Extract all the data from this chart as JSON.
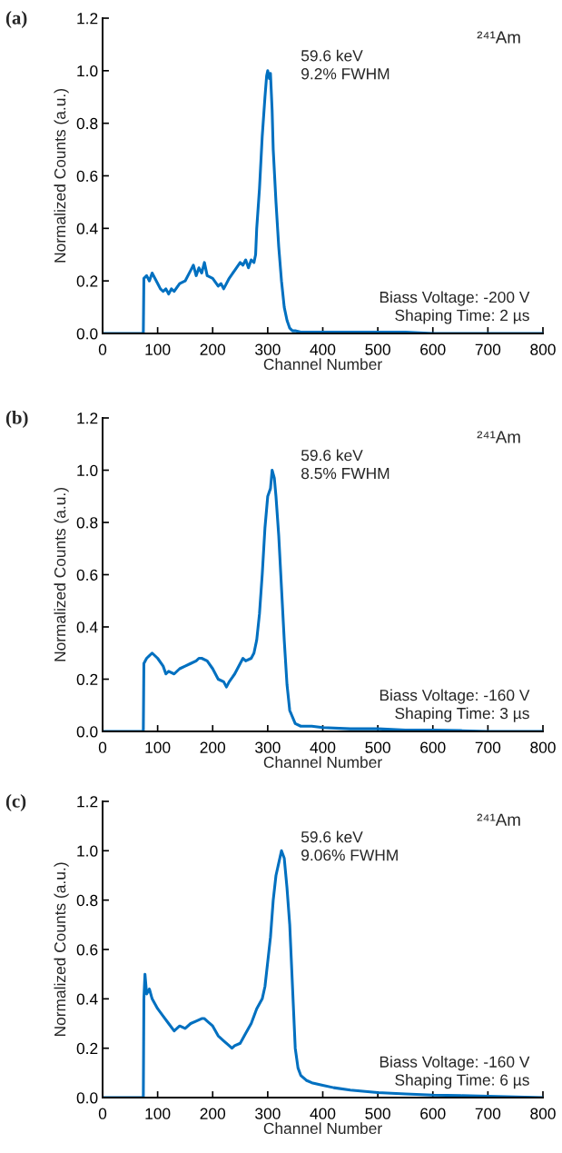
{
  "chart_data": [
    {
      "type": "line",
      "title": "(a)",
      "xlabel": "Channel Number",
      "ylabel": "Normalized Counts (a.u.)",
      "xlim": [
        0,
        800
      ],
      "ylim": [
        0,
        1.2
      ],
      "xticks": [
        0,
        100,
        200,
        300,
        400,
        500,
        600,
        700,
        800
      ],
      "yticks": [
        {
          "value": 0,
          "label": "0.0"
        },
        {
          "value": 0.2,
          "label": "0.2"
        },
        {
          "value": 0.4,
          "label": "0.4"
        },
        {
          "value": 0.6,
          "label": "0.6"
        },
        {
          "value": 0.8,
          "label": "0.8"
        },
        {
          "value": 1.0,
          "label": "1.0"
        },
        {
          "value": 1.2,
          "label": "1.2"
        }
      ],
      "grid": false,
      "marker": "none",
      "line_style": "solid",
      "annotations": [
        "²⁴¹Am",
        "59.6 keV\n9.2% FWHM",
        "Biass Voltage: -200 V\nShaping Time: 2 µs"
      ],
      "series": [
        {
          "color": "#0070c0",
          "x": [
            0,
            74,
            75,
            80,
            85,
            90,
            95,
            100,
            105,
            110,
            115,
            120,
            125,
            130,
            140,
            150,
            160,
            165,
            170,
            175,
            180,
            185,
            190,
            200,
            210,
            215,
            220,
            230,
            240,
            250,
            255,
            260,
            265,
            270,
            275,
            278,
            280,
            285,
            290,
            295,
            298,
            300,
            303,
            305,
            308,
            310,
            315,
            320,
            325,
            330,
            335,
            340,
            345,
            350,
            360,
            380,
            400,
            450,
            500,
            550,
            600,
            650,
            700,
            750,
            800
          ],
          "values": [
            0,
            0,
            0.21,
            0.22,
            0.2,
            0.23,
            0.21,
            0.19,
            0.17,
            0.16,
            0.17,
            0.15,
            0.17,
            0.16,
            0.19,
            0.2,
            0.24,
            0.26,
            0.22,
            0.25,
            0.23,
            0.27,
            0.22,
            0.21,
            0.18,
            0.19,
            0.17,
            0.21,
            0.24,
            0.27,
            0.26,
            0.28,
            0.25,
            0.28,
            0.27,
            0.3,
            0.4,
            0.55,
            0.75,
            0.9,
            0.98,
            1.0,
            0.97,
            0.99,
            0.85,
            0.7,
            0.5,
            0.33,
            0.2,
            0.1,
            0.05,
            0.02,
            0.01,
            0.01,
            0.005,
            0.005,
            0.005,
            0.005,
            0.005,
            0.005,
            0,
            0,
            0,
            0,
            0
          ]
        }
      ]
    },
    {
      "type": "line",
      "title": "(b)",
      "xlabel": "Channel Number",
      "ylabel": "Normalized Counts (a.u.)",
      "xlim": [
        0,
        800
      ],
      "ylim": [
        0,
        1.2
      ],
      "xticks": [
        0,
        100,
        200,
        300,
        400,
        500,
        600,
        700,
        800
      ],
      "yticks": [
        {
          "value": 0,
          "label": "0.0"
        },
        {
          "value": 0.2,
          "label": "0.2"
        },
        {
          "value": 0.4,
          "label": "0.4"
        },
        {
          "value": 0.6,
          "label": "0.6"
        },
        {
          "value": 0.8,
          "label": "0.8"
        },
        {
          "value": 1.0,
          "label": "1.0"
        },
        {
          "value": 1.2,
          "label": "1.2"
        }
      ],
      "grid": false,
      "marker": "none",
      "line_style": "solid",
      "annotations": [
        "²⁴¹Am",
        "59.6 keV\n8.5% FWHM",
        "Biass Voltage: -160 V\nShaping Time: 3 µs"
      ],
      "series": [
        {
          "color": "#0070c0",
          "x": [
            0,
            74,
            75,
            80,
            85,
            90,
            100,
            110,
            115,
            120,
            130,
            140,
            150,
            160,
            170,
            175,
            180,
            190,
            200,
            210,
            220,
            225,
            230,
            240,
            250,
            255,
            260,
            270,
            275,
            280,
            285,
            290,
            295,
            300,
            305,
            308,
            312,
            315,
            320,
            325,
            330,
            335,
            340,
            350,
            360,
            380,
            400,
            450,
            500,
            550,
            600,
            650,
            700,
            750,
            800
          ],
          "values": [
            0,
            0,
            0.26,
            0.28,
            0.29,
            0.3,
            0.28,
            0.25,
            0.22,
            0.23,
            0.22,
            0.24,
            0.25,
            0.26,
            0.27,
            0.28,
            0.28,
            0.27,
            0.24,
            0.2,
            0.19,
            0.17,
            0.19,
            0.22,
            0.26,
            0.28,
            0.27,
            0.28,
            0.3,
            0.35,
            0.45,
            0.6,
            0.78,
            0.9,
            0.93,
            1.0,
            0.97,
            0.9,
            0.75,
            0.55,
            0.35,
            0.18,
            0.08,
            0.03,
            0.02,
            0.02,
            0.015,
            0.01,
            0.01,
            0.005,
            0.005,
            0.003,
            0,
            0,
            0
          ]
        }
      ]
    },
    {
      "type": "line",
      "title": "(c)",
      "xlabel": "Channel Number",
      "ylabel": "Normalized Counts (a.u.)",
      "xlim": [
        0,
        800
      ],
      "ylim": [
        0,
        1.2
      ],
      "xticks": [
        0,
        100,
        200,
        300,
        400,
        500,
        600,
        700,
        800
      ],
      "yticks": [
        {
          "value": 0,
          "label": "0.0"
        },
        {
          "value": 0.2,
          "label": "0.2"
        },
        {
          "value": 0.4,
          "label": "0.4"
        },
        {
          "value": 0.6,
          "label": "0.6"
        },
        {
          "value": 0.8,
          "label": "0.8"
        },
        {
          "value": 1.0,
          "label": "1.0"
        },
        {
          "value": 1.2,
          "label": "1.2"
        }
      ],
      "grid": false,
      "marker": "none",
      "line_style": "solid",
      "annotations": [
        "²⁴¹Am",
        "59.6 keV\n9.06% FWHM",
        "Biass Voltage: -160 V\nShaping Time: 6 µs"
      ],
      "series": [
        {
          "color": "#0070c0",
          "x": [
            0,
            74,
            75,
            77,
            80,
            85,
            90,
            95,
            100,
            110,
            120,
            130,
            140,
            150,
            160,
            170,
            180,
            185,
            190,
            200,
            210,
            220,
            230,
            235,
            240,
            250,
            260,
            270,
            280,
            290,
            295,
            300,
            305,
            310,
            315,
            320,
            325,
            330,
            335,
            340,
            345,
            350,
            355,
            360,
            370,
            380,
            400,
            420,
            450,
            500,
            550,
            600,
            650,
            700,
            750,
            800
          ],
          "values": [
            0,
            0,
            0.4,
            0.5,
            0.42,
            0.44,
            0.4,
            0.38,
            0.36,
            0.33,
            0.3,
            0.27,
            0.29,
            0.28,
            0.3,
            0.31,
            0.32,
            0.32,
            0.31,
            0.29,
            0.25,
            0.23,
            0.21,
            0.2,
            0.21,
            0.22,
            0.26,
            0.3,
            0.36,
            0.4,
            0.45,
            0.55,
            0.65,
            0.8,
            0.9,
            0.95,
            1.0,
            0.97,
            0.85,
            0.7,
            0.45,
            0.2,
            0.12,
            0.09,
            0.07,
            0.06,
            0.05,
            0.04,
            0.03,
            0.02,
            0.015,
            0.01,
            0.008,
            0.005,
            0.003,
            0
          ]
        }
      ]
    }
  ]
}
